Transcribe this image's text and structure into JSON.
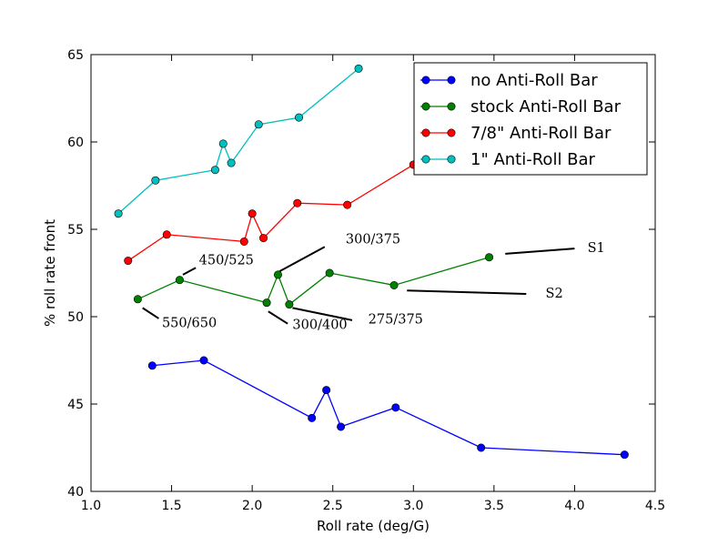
{
  "chart_data": {
    "type": "line",
    "xlabel": "Roll rate (deg/G)",
    "ylabel": "% roll rate front",
    "xlim": [
      1.0,
      4.5
    ],
    "ylim": [
      40,
      65
    ],
    "xticks": [
      "1.0",
      "1.5",
      "2.0",
      "2.5",
      "3.0",
      "3.5",
      "4.0",
      "4.5"
    ],
    "yticks": [
      "40",
      "45",
      "50",
      "55",
      "60",
      "65"
    ],
    "grid": false,
    "legend_position": "top-right",
    "series": [
      {
        "name": "no Anti-Roll Bar",
        "color": "#0000ff",
        "points": [
          [
            1.38,
            47.2
          ],
          [
            1.7,
            47.5
          ],
          [
            2.37,
            44.2
          ],
          [
            2.46,
            45.8
          ],
          [
            2.55,
            43.7
          ],
          [
            2.89,
            44.8
          ],
          [
            3.42,
            42.5
          ],
          [
            4.31,
            42.1
          ]
        ]
      },
      {
        "name": "stock Anti-Roll Bar",
        "color": "#008000",
        "points": [
          [
            1.29,
            51.0
          ],
          [
            1.55,
            52.1
          ],
          [
            2.09,
            50.8
          ],
          [
            2.16,
            52.4
          ],
          [
            2.23,
            50.7
          ],
          [
            2.48,
            52.5
          ],
          [
            2.88,
            51.8
          ],
          [
            3.47,
            53.4
          ]
        ]
      },
      {
        "name": "7/8\" Anti-Roll Bar",
        "color": "#ff0000",
        "points": [
          [
            1.23,
            53.2
          ],
          [
            1.47,
            54.7
          ],
          [
            1.95,
            54.3
          ],
          [
            2.0,
            55.9
          ],
          [
            2.07,
            54.5
          ],
          [
            2.28,
            56.5
          ],
          [
            2.59,
            56.4
          ],
          [
            3.0,
            58.7
          ]
        ]
      },
      {
        "name": "1\" Anti-Roll Bar",
        "color": "#00bfbf",
        "points": [
          [
            1.17,
            55.9
          ],
          [
            1.4,
            57.8
          ],
          [
            1.77,
            58.4
          ],
          [
            1.82,
            59.9
          ],
          [
            1.87,
            58.8
          ],
          [
            2.04,
            61.0
          ],
          [
            2.29,
            61.4
          ],
          [
            2.66,
            64.2
          ]
        ]
      }
    ],
    "annotations": [
      {
        "text": "300/375",
        "line": [
          [
            2.17,
            52.6
          ],
          [
            2.45,
            54.0
          ]
        ],
        "text_at": [
          2.58,
          54.2
        ]
      },
      {
        "text": "450/525",
        "line": [
          [
            1.57,
            52.4
          ],
          [
            1.65,
            52.8
          ]
        ],
        "text_at": [
          1.67,
          53.0
        ]
      },
      {
        "text": "550/650",
        "line": [
          [
            1.32,
            50.5
          ],
          [
            1.42,
            49.9
          ]
        ],
        "text_at": [
          1.44,
          49.4
        ]
      },
      {
        "text": "300/400",
        "line": [
          [
            2.1,
            50.3
          ],
          [
            2.22,
            49.6
          ]
        ],
        "text_at": [
          2.25,
          49.3
        ]
      },
      {
        "text": "275/375",
        "line": [
          [
            2.25,
            50.5
          ],
          [
            2.62,
            49.8
          ]
        ],
        "text_at": [
          2.72,
          49.6
        ]
      },
      {
        "text": "S1",
        "line": [
          [
            3.57,
            53.6
          ],
          [
            4.0,
            53.9
          ]
        ],
        "text_at": [
          4.08,
          53.7
        ]
      },
      {
        "text": "S2",
        "line": [
          [
            2.96,
            51.5
          ],
          [
            3.7,
            51.3
          ]
        ],
        "text_at": [
          3.82,
          51.1
        ]
      }
    ]
  }
}
